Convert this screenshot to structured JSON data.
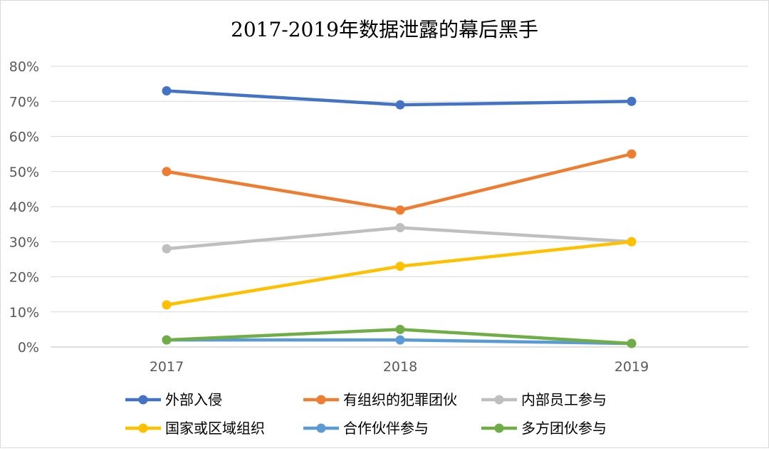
{
  "chart_data": {
    "type": "line",
    "title": "2017-2019年数据泄露的幕后黑手",
    "xlabel": "",
    "ylabel": "",
    "categories": [
      "2017",
      "2018",
      "2019"
    ],
    "ylim": [
      0,
      80
    ],
    "yticks": [
      "0%",
      "10%",
      "20%",
      "30%",
      "40%",
      "50%",
      "60%",
      "70%",
      "80%"
    ],
    "grid": true,
    "legend_position": "bottom",
    "series": [
      {
        "name": "外部入侵",
        "color": "#4472C4",
        "values": [
          73,
          69,
          70
        ]
      },
      {
        "name": "有组织的犯罪团伙",
        "color": "#ED7D31",
        "values": [
          50,
          39,
          55
        ]
      },
      {
        "name": "内部员工参与",
        "color": "#BFBFBF",
        "values": [
          28,
          34,
          30
        ]
      },
      {
        "name": "国家或区域组织",
        "color": "#FFC000",
        "values": [
          12,
          23,
          30
        ]
      },
      {
        "name": "合作伙伴参与",
        "color": "#5B9BD5",
        "values": [
          2,
          2,
          1
        ]
      },
      {
        "name": "多方团伙参与",
        "color": "#70AD47",
        "values": [
          2,
          5,
          1
        ]
      }
    ]
  }
}
